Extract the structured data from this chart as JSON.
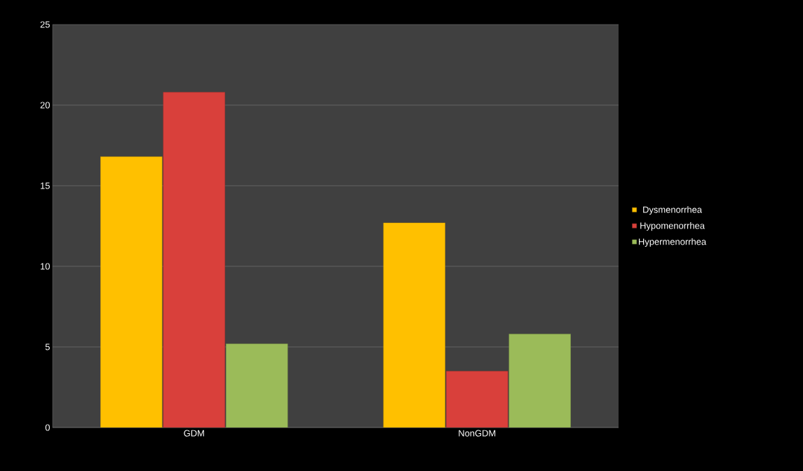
{
  "chart_data": {
    "type": "bar",
    "categories": [
      "GDM",
      "NonGDM"
    ],
    "series": [
      {
        "name": "Dysmenorrhea",
        "color": "#ffc000",
        "values": [
          16.8,
          12.7
        ]
      },
      {
        "name": "Hypomenorrhea",
        "color": "#d9403b",
        "values": [
          20.8,
          3.5
        ]
      },
      {
        "name": "Hypermenorrhea",
        "color": "#9bbb59",
        "values": [
          5.2,
          5.8
        ]
      }
    ],
    "ylim": [
      0,
      25
    ],
    "yticks": [
      0,
      5,
      10,
      15,
      20,
      25
    ],
    "grid": "y",
    "legend": "right"
  }
}
